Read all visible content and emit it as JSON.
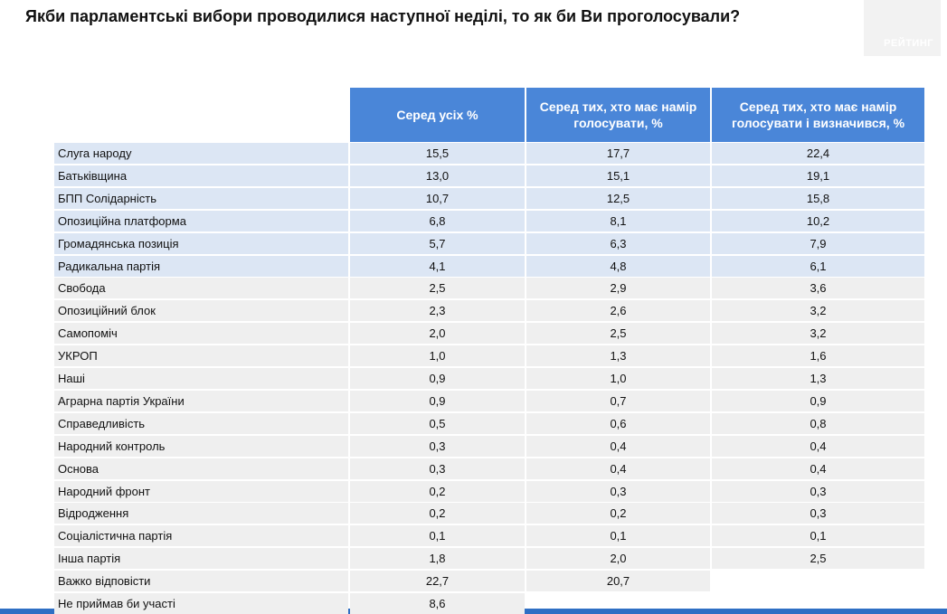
{
  "header": {
    "title": "Якби парламентські вибори проводилися наступної неділі, то як би Ви проголосували?",
    "logo": "РЕЙТИНГ"
  },
  "table": {
    "columns": [
      "Серед усіх %",
      "Серед тих, хто має намір голосувати, %",
      "Серед тих, хто має намір голосувати і визначився, %"
    ],
    "rows": [
      [
        "Слуга народу",
        "15,5",
        "17,7",
        "22,4"
      ],
      [
        "Батьківщина",
        "13,0",
        "15,1",
        "19,1"
      ],
      [
        "БПП Солідарність",
        "10,7",
        "12,5",
        "15,8"
      ],
      [
        "Опозиційна платформа",
        "6,8",
        "8,1",
        "10,2"
      ],
      [
        "Громадянська позиція",
        "5,7",
        "6,3",
        "7,9"
      ],
      [
        "Радикальна партія",
        "4,1",
        "4,8",
        "6,1"
      ],
      [
        "Свобода",
        "2,5",
        "2,9",
        "3,6"
      ],
      [
        "Опозиційний блок",
        "2,3",
        "2,6",
        "3,2"
      ],
      [
        "Самопоміч",
        "2,0",
        "2,5",
        "3,2"
      ],
      [
        "УКРОП",
        "1,0",
        "1,3",
        "1,6"
      ],
      [
        "Наші",
        "0,9",
        "1,0",
        "1,3"
      ],
      [
        "Аграрна партія України",
        "0,9",
        "0,7",
        "0,9"
      ],
      [
        "Справедливість",
        "0,5",
        "0,6",
        "0,8"
      ],
      [
        "Народний контроль",
        "0,3",
        "0,4",
        "0,4"
      ],
      [
        "Основа",
        "0,3",
        "0,4",
        "0,4"
      ],
      [
        "Народний фронт",
        "0,2",
        "0,3",
        "0,3"
      ],
      [
        "Відродження",
        "0,2",
        "0,2",
        "0,3"
      ],
      [
        "Соціалістична партія",
        "0,1",
        "0,1",
        "0,1"
      ],
      [
        "Інша партія",
        "1,8",
        "2,0",
        "2,5"
      ],
      [
        "Важко відповісти",
        "22,7",
        "20,7"
      ],
      [
        "Не приймав би участі",
        "8,6"
      ]
    ]
  }
}
